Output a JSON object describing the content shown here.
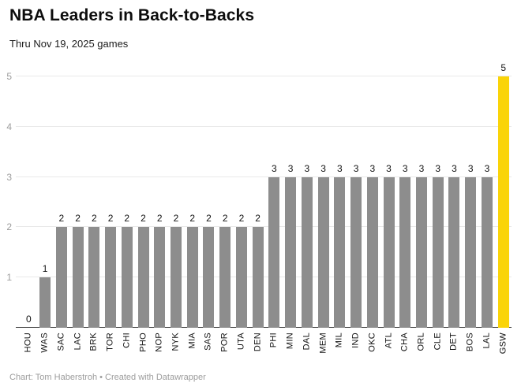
{
  "header": {
    "title": "NBA Leaders in Back-to-Backs",
    "subtitle": "Thru Nov 19, 2025 games"
  },
  "chart_data": {
    "type": "bar",
    "title": "NBA Leaders in Back-to-Backs",
    "subtitle": "Thru Nov 19, 2025 games",
    "categories": [
      "HOU",
      "WAS",
      "SAC",
      "LAC",
      "BRK",
      "TOR",
      "CHI",
      "PHO",
      "NOP",
      "NYK",
      "MIA",
      "SAS",
      "POR",
      "UTA",
      "DEN",
      "PHI",
      "MIN",
      "DAL",
      "MEM",
      "MIL",
      "IND",
      "OKC",
      "ATL",
      "CHA",
      "ORL",
      "CLE",
      "DET",
      "BOS",
      "LAL",
      "GSW"
    ],
    "values": [
      0,
      1,
      2,
      2,
      2,
      2,
      2,
      2,
      2,
      2,
      2,
      2,
      2,
      2,
      2,
      3,
      3,
      3,
      3,
      3,
      3,
      3,
      3,
      3,
      3,
      3,
      3,
      3,
      3,
      5
    ],
    "ylabel": "",
    "xlabel": "",
    "ylim": [
      0,
      5
    ],
    "yticks": [
      1,
      2,
      3,
      4,
      5
    ],
    "grid": true,
    "value_labels": true,
    "legend": "none",
    "bar_color": "#8d8d8d",
    "highlight_color": "#fad408",
    "highlight_category": "GSW"
  },
  "footer": {
    "credit": "Chart: Tom Haberstroh • Created with Datawrapper"
  }
}
